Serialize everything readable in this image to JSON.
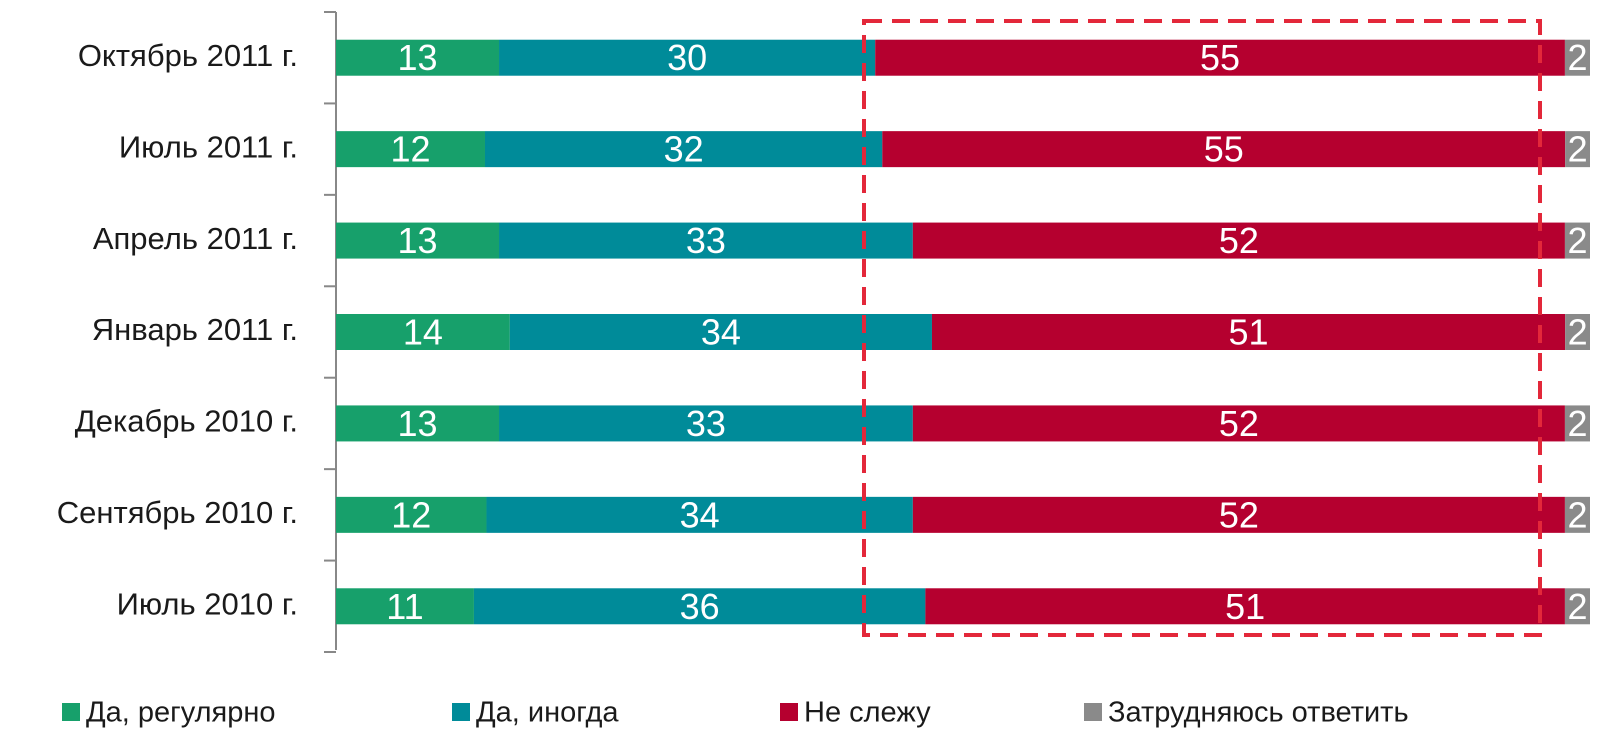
{
  "chart_data": {
    "type": "bar",
    "orientation": "horizontal",
    "stack": "percent",
    "categories": [
      "Октябрь 2011 г.",
      "Июль 2011 г.",
      "Апрель 2011 г.",
      "Январь 2011 г.",
      "Декабрь 2010 г.",
      "Сентябрь 2010 г.",
      "Июль 2010 г."
    ],
    "series": [
      {
        "name": "Да, регулярно",
        "color": "#17a06b",
        "values": [
          13,
          12,
          13,
          14,
          13,
          12,
          11
        ]
      },
      {
        "name": "Да, иногда",
        "color": "#008b99",
        "values": [
          30,
          32,
          33,
          34,
          33,
          34,
          36
        ]
      },
      {
        "name": "Не слежу",
        "color": "#b5002f",
        "values": [
          55,
          55,
          52,
          51,
          52,
          52,
          51
        ]
      },
      {
        "name": "Затрудняюсь ответить",
        "color": "#8a8a8a",
        "values": [
          2,
          2,
          2,
          2,
          2,
          2,
          2
        ]
      }
    ],
    "legend": "bottom"
  }
}
